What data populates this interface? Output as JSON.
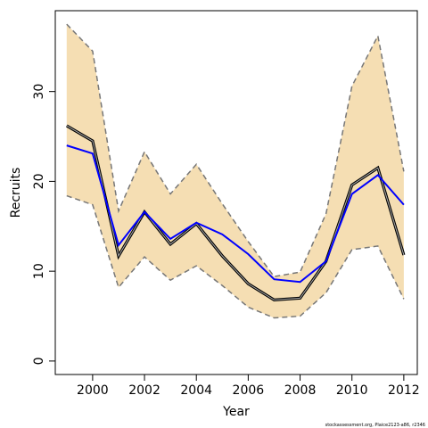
{
  "chart_data": {
    "type": "line",
    "xlabel": "Year",
    "ylabel": "Recruits",
    "footnote": "stockassessment.org, Plaice2123-a86, r2346",
    "x": [
      1999,
      2000,
      2001,
      2002,
      2003,
      2004,
      2005,
      2006,
      2007,
      2008,
      2009,
      2010,
      2011,
      2012
    ],
    "band": {
      "color": "#f5deb3",
      "edge_color": "#777777",
      "upper": [
        37.5,
        34.5,
        16.7,
        23.3,
        18.6,
        21.9,
        17.5,
        13.3,
        9.4,
        9.9,
        16.4,
        30.6,
        36.2,
        21.1
      ],
      "lower": [
        18.4,
        17.4,
        8.2,
        11.6,
        9.0,
        10.6,
        8.4,
        6.0,
        4.8,
        5.0,
        7.6,
        12.4,
        12.8,
        6.9
      ]
    },
    "series": [
      {
        "color": "#000000",
        "double": true,
        "values": [
          26.2,
          24.5,
          11.7,
          16.6,
          13.0,
          15.3,
          11.7,
          8.6,
          6.8,
          7.0,
          11.1,
          19.6,
          21.5,
          11.8
        ]
      },
      {
        "color": "#0000ff",
        "double": false,
        "values": [
          24.0,
          23.1,
          12.9,
          16.6,
          13.6,
          15.4,
          14.1,
          11.9,
          9.1,
          8.8,
          11.1,
          18.6,
          20.7,
          17.4
        ]
      }
    ],
    "xlim": [
      1998.56,
      2012.52
    ],
    "ylim": [
      -1.5,
      39.0
    ],
    "xticks": [
      2000,
      2002,
      2004,
      2006,
      2008,
      2010,
      2012
    ],
    "yticks": [
      0,
      10,
      20,
      30
    ]
  }
}
